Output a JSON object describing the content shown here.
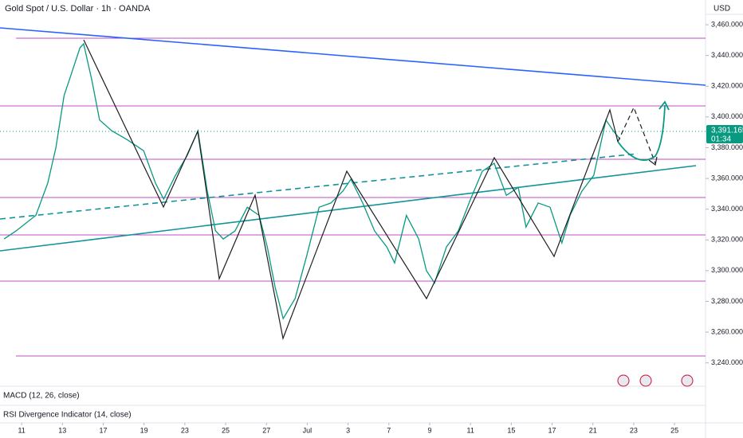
{
  "chart_data": {
    "type": "line",
    "title": "Gold Spot / U.S. Dollar · 1h · OANDA",
    "currency": "USD",
    "price_tag": "3,391.165",
    "countdown": "01:34",
    "indicators": [
      "MACD (12, 26, close)",
      "RSI Divergence Indicator (14, close)"
    ],
    "x": [
      -0.43,
      -0.14,
      0.35,
      0.64,
      0.84,
      1.04,
      1.23,
      1.43,
      1.52,
      1.72,
      1.91,
      2.21,
      2.6,
      2.99,
      3.28,
      3.48,
      3.77,
      4.06,
      4.32,
      4.55,
      4.75,
      4.94,
      5.23,
      5.53,
      5.82,
      6.02,
      6.21,
      6.41,
      6.7,
      6.99,
      7.29,
      7.58,
      7.87,
      8.07,
      8.36,
      8.65,
      8.95,
      9.14,
      9.43,
      9.73,
      9.92,
      10.12,
      10.41,
      10.7,
      11,
      11.29,
      11.58,
      11.88,
      12.17,
      12.36,
      12.66,
      12.95,
      13.24,
      13.44,
      13.73,
      14.02,
      14.32,
      14.51,
      14.67
    ],
    "series": [
      {
        "color": "#089981",
        "values": [
          3320.6,
          3325.8,
          3336,
          3357,
          3380,
          3414,
          3429,
          3445,
          3447.6,
          3424,
          3398,
          3391,
          3385,
          3378,
          3357,
          3346.5,
          3362,
          3375,
          3391,
          3351.7,
          3326,
          3320.6,
          3325.8,
          3341.3,
          3336,
          3315.4,
          3289.5,
          3268.8,
          3281.8,
          3310,
          3341.3,
          3344,
          3351.7,
          3359.5,
          3344,
          3325.8,
          3315.4,
          3305,
          3336,
          3320.6,
          3300,
          3292,
          3315.4,
          3325.8,
          3346.5,
          3364.7,
          3369.9,
          3349,
          3354.2,
          3328.4,
          3344,
          3341.3,
          3318,
          3336,
          3351.7,
          3362,
          3398,
          3390.6,
          3385.4
        ]
      }
    ],
    "xlim": [
      -0.53,
      16.76
    ],
    "xticks": [
      {
        "value": 0,
        "label": "11"
      },
      {
        "value": 1,
        "label": "13"
      },
      {
        "value": 2,
        "label": "17"
      },
      {
        "value": 3,
        "label": "19"
      },
      {
        "value": 4,
        "label": "23"
      },
      {
        "value": 5,
        "label": "25"
      },
      {
        "value": 6,
        "label": "27"
      },
      {
        "value": 7,
        "label": "Jul"
      },
      {
        "value": 8,
        "label": "3"
      },
      {
        "value": 9,
        "label": "7"
      },
      {
        "value": 10,
        "label": "9"
      },
      {
        "value": 11,
        "label": "11"
      },
      {
        "value": 12,
        "label": "15"
      },
      {
        "value": 13,
        "label": "17"
      },
      {
        "value": 14,
        "label": "21"
      },
      {
        "value": 15,
        "label": "23"
      },
      {
        "value": 16,
        "label": "25"
      }
    ],
    "ylim": [
      3224.8,
      3476.1
    ],
    "yticks": [
      {
        "value": 3460,
        "label": "3,460.000"
      },
      {
        "value": 3440,
        "label": "3,440.000"
      },
      {
        "value": 3420,
        "label": "3,420.000"
      },
      {
        "value": 3400,
        "label": "3,400.000"
      },
      {
        "value": 3380,
        "label": "3,380.000"
      },
      {
        "value": 3360,
        "label": "3,360.000"
      },
      {
        "value": 3340,
        "label": "3,340.000"
      },
      {
        "value": 3320,
        "label": "3,320.000"
      },
      {
        "value": 3300,
        "label": "3,300.000"
      },
      {
        "value": 3280,
        "label": "3,280.000"
      },
      {
        "value": 3260,
        "label": "3,260.000"
      },
      {
        "value": 3240,
        "label": "3,240.000"
      }
    ]
  }
}
